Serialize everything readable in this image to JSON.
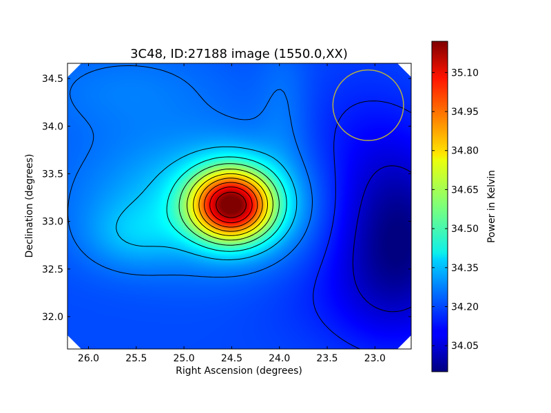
{
  "chart_data": {
    "type": "heatmap",
    "title": "3C48, ID:27188 image (1550.0,XX)",
    "xlabel": "Right Ascension (degrees)",
    "ylabel": "Declination (degrees)",
    "colorbar_label": "Power in Kelvin",
    "xlim": [
      26.22,
      22.62
    ],
    "ylim": [
      31.66,
      34.66
    ],
    "x_ticks": [
      "26.0",
      "25.5",
      "25.0",
      "24.5",
      "24.0",
      "23.5",
      "23.0"
    ],
    "y_ticks": [
      "32.0",
      "32.5",
      "33.0",
      "33.5",
      "34.0",
      "34.5"
    ],
    "colorbar_range": [
      33.95,
      35.22
    ],
    "colorbar_ticks": [
      "34.05",
      "34.20",
      "34.35",
      "34.50",
      "34.65",
      "34.80",
      "34.95",
      "35.10"
    ],
    "colormap": "jet",
    "peak": {
      "ra": 24.5,
      "dec": 33.17,
      "value": 35.22
    },
    "minimum": {
      "ra": 22.75,
      "dec": 32.8,
      "value": 33.95
    },
    "beam_circle": {
      "ra": 23.07,
      "dec": 34.22,
      "radius_deg": 0.37,
      "color": "#b8b040"
    },
    "contour_color": "#000000",
    "grid": false
  }
}
